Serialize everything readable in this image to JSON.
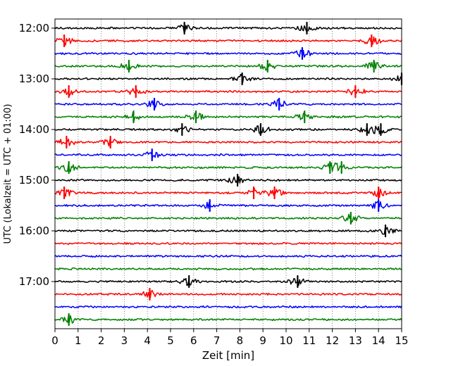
{
  "chart_data": {
    "type": "line",
    "title": "",
    "xlabel": "Zeit  [min]",
    "ylabel": "UTC (Lokalzeit = UTC + 01:00)",
    "xlim": [
      0,
      15
    ],
    "x_ticks": [
      "0",
      "1",
      "2",
      "3",
      "4",
      "5",
      "6",
      "7",
      "8",
      "9",
      "10",
      "11",
      "12",
      "13",
      "14",
      "15"
    ],
    "y_tick_labels": [
      "12:00",
      "13:00",
      "14:00",
      "15:00",
      "16:00",
      "17:00"
    ],
    "grid": {
      "x": true,
      "y": false,
      "style": "dotted"
    },
    "trace_start_times": [
      "12:00",
      "12:15",
      "12:30",
      "12:45",
      "13:00",
      "13:15",
      "13:30",
      "13:45",
      "14:00",
      "14:15",
      "14:30",
      "14:45",
      "15:00",
      "15:15",
      "15:30",
      "15:45",
      "16:00",
      "16:15",
      "16:30",
      "16:45",
      "17:00",
      "17:15",
      "17:30",
      "17:45"
    ],
    "trace_minutes": 15,
    "color_cycle": [
      "#000000",
      "#ff0000",
      "#0000ff",
      "#008000"
    ],
    "events": [
      [
        5.6,
        10.9
      ],
      [
        0.4,
        13.7
      ],
      [
        10.7
      ],
      [
        9.2,
        13.8,
        3.2
      ],
      [
        8.1,
        15.0
      ],
      [
        0.6,
        3.5,
        13.0
      ],
      [
        9.7,
        4.3
      ],
      [
        6.1,
        10.8,
        3.4
      ],
      [
        8.9,
        13.5,
        14.1,
        5.5
      ],
      [
        2.4,
        0.5
      ],
      [
        4.2
      ],
      [
        0.6,
        12.4,
        11.9
      ],
      [
        7.9
      ],
      [
        0.4,
        9.5,
        8.6,
        14.0
      ],
      [
        14.0,
        6.7
      ],
      [
        12.8
      ],
      [
        14.3
      ],
      [],
      [],
      [],
      [
        10.5,
        5.8
      ],
      [
        4.1
      ],
      [],
      [
        0.6
      ]
    ]
  }
}
